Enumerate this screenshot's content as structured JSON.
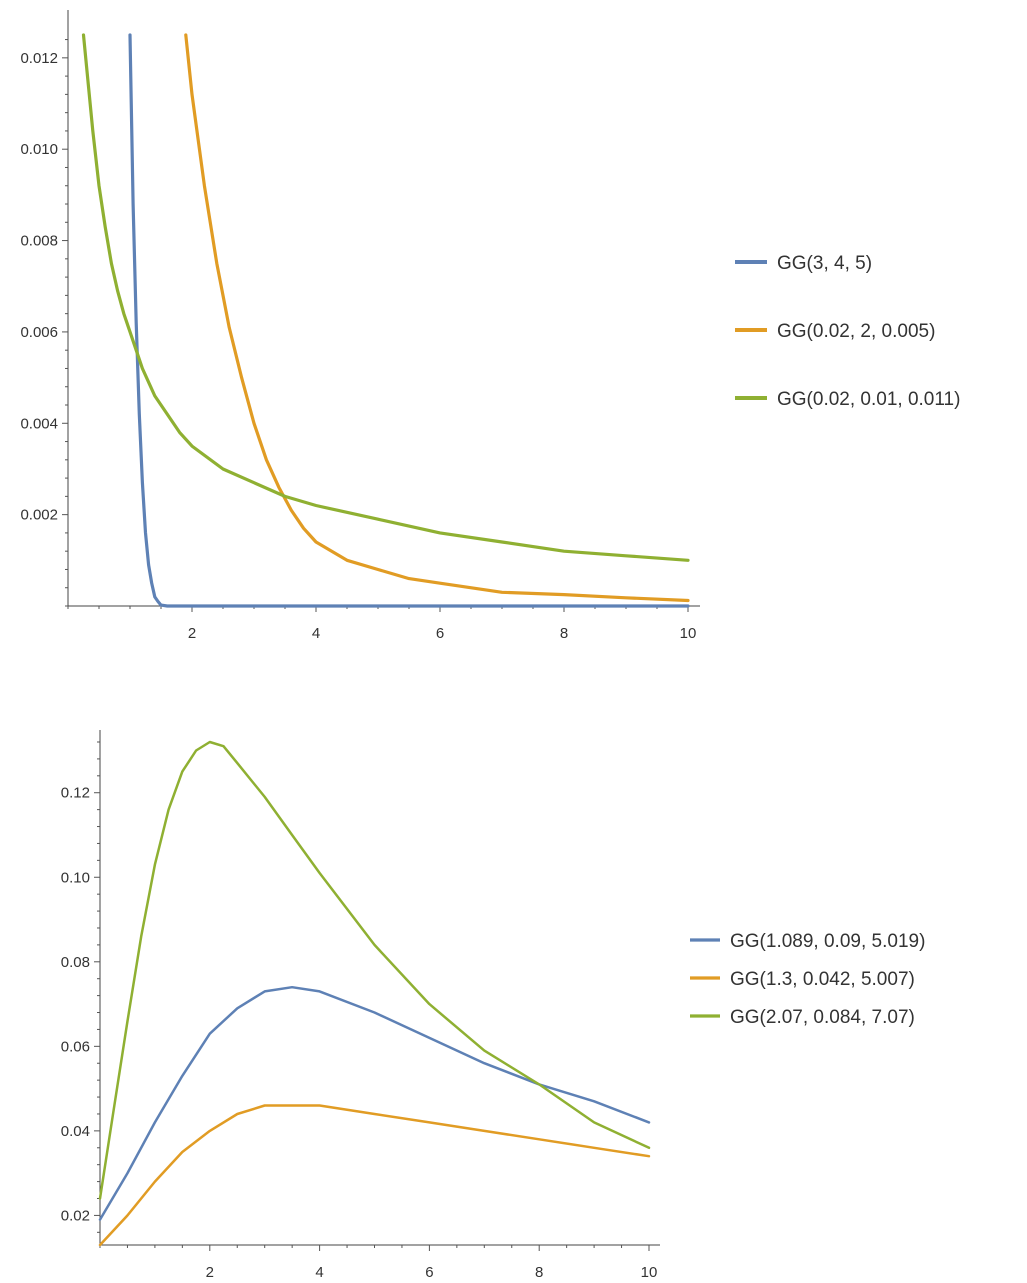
{
  "chart_data": [
    {
      "type": "line",
      "title": "",
      "xlabel": "",
      "ylabel": "",
      "xlim": [
        0,
        10
      ],
      "ylim": [
        0,
        0.0125
      ],
      "grid": false,
      "legend_position": "right",
      "x_ticks": [
        2,
        4,
        6,
        8,
        10
      ],
      "x_tick_labels": [
        "2",
        "4",
        "6",
        "8",
        "10"
      ],
      "y_ticks": [
        0.002,
        0.004,
        0.006,
        0.008,
        0.01,
        0.012
      ],
      "y_tick_labels": [
        "0.002",
        "0.004",
        "0.006",
        "0.008",
        "0.010",
        "0.012"
      ],
      "series": [
        {
          "name": "GG(3, 4, 5)",
          "color": "#5e81b5",
          "x": [
            1.0,
            1.05,
            1.1,
            1.15,
            1.2,
            1.25,
            1.3,
            1.35,
            1.4,
            1.45,
            1.5,
            1.6,
            1.8,
            2.5,
            4,
            6,
            8,
            10
          ],
          "y": [
            0.0125,
            0.0088,
            0.0062,
            0.0042,
            0.0027,
            0.0016,
            0.0009,
            0.0005,
            0.0002,
            0.0001,
            2e-05,
            0.0,
            0.0,
            0.0,
            0.0,
            0.0,
            0.0,
            0.0
          ]
        },
        {
          "name": "GG(0.02, 2, 0.005)",
          "color": "#e19c24",
          "x": [
            1.9,
            2.0,
            2.2,
            2.4,
            2.6,
            2.8,
            3.0,
            3.2,
            3.4,
            3.6,
            3.8,
            4.0,
            4.5,
            5.0,
            5.5,
            6.0,
            7.0,
            8.0,
            9.0,
            10.0
          ],
          "y": [
            0.0125,
            0.0112,
            0.0092,
            0.0075,
            0.0061,
            0.005,
            0.004,
            0.0032,
            0.0026,
            0.0021,
            0.0017,
            0.0014,
            0.001,
            0.0008,
            0.0006,
            0.0005,
            0.0003,
            0.00025,
            0.00018,
            0.00012
          ]
        },
        {
          "name": "GG(0.02, 0.01, 0.011)",
          "color": "#8fb032",
          "x": [
            0.25,
            0.3,
            0.4,
            0.5,
            0.6,
            0.7,
            0.8,
            0.9,
            1.0,
            1.1,
            1.2,
            1.4,
            1.6,
            1.8,
            2.0,
            2.5,
            3.0,
            3.5,
            4.0,
            5.0,
            6.0,
            7.0,
            8.0,
            9.0,
            10.0
          ],
          "y": [
            0.0125,
            0.0118,
            0.0104,
            0.0092,
            0.0083,
            0.0075,
            0.0069,
            0.0064,
            0.006,
            0.0056,
            0.0052,
            0.0046,
            0.0042,
            0.0038,
            0.0035,
            0.003,
            0.0027,
            0.0024,
            0.0022,
            0.0019,
            0.0016,
            0.0014,
            0.0012,
            0.0011,
            0.001
          ]
        }
      ]
    },
    {
      "type": "line",
      "title": "",
      "xlabel": "",
      "ylabel": "",
      "xlim": [
        0,
        10
      ],
      "ylim": [
        0.013,
        0.135
      ],
      "grid": false,
      "legend_position": "right",
      "x_ticks": [
        2,
        4,
        6,
        8,
        10
      ],
      "x_tick_labels": [
        "2",
        "4",
        "6",
        "8",
        "10"
      ],
      "y_ticks": [
        0.02,
        0.04,
        0.06,
        0.08,
        0.1,
        0.12
      ],
      "y_tick_labels": [
        "0.02",
        "0.04",
        "0.06",
        "0.08",
        "0.10",
        "0.12"
      ],
      "series": [
        {
          "name": "GG(1.089, 0.09, 5.019)",
          "color": "#5e81b5",
          "x": [
            0.0,
            0.5,
            1.0,
            1.5,
            2.0,
            2.5,
            3.0,
            3.5,
            4.0,
            5.0,
            6.0,
            7.0,
            8.0,
            9.0,
            10.0
          ],
          "y": [
            0.019,
            0.03,
            0.042,
            0.053,
            0.063,
            0.069,
            0.073,
            0.074,
            0.073,
            0.068,
            0.062,
            0.056,
            0.051,
            0.047,
            0.042
          ]
        },
        {
          "name": "GG(1.3, 0.042, 5.007)",
          "color": "#e19c24",
          "x": [
            0.0,
            0.5,
            1.0,
            1.5,
            2.0,
            2.5,
            3.0,
            3.5,
            4.0,
            5.0,
            6.0,
            7.0,
            8.0,
            9.0,
            10.0
          ],
          "y": [
            0.013,
            0.02,
            0.028,
            0.035,
            0.04,
            0.044,
            0.046,
            0.046,
            0.046,
            0.044,
            0.042,
            0.04,
            0.038,
            0.036,
            0.034
          ]
        },
        {
          "name": "GG(2.07, 0.084, 7.07)",
          "color": "#8fb032",
          "x": [
            0.0,
            0.25,
            0.5,
            0.75,
            1.0,
            1.25,
            1.5,
            1.75,
            2.0,
            2.25,
            2.5,
            3.0,
            3.5,
            4.0,
            5.0,
            6.0,
            7.0,
            8.0,
            9.0,
            10.0
          ],
          "y": [
            0.024,
            0.045,
            0.066,
            0.086,
            0.103,
            0.116,
            0.125,
            0.13,
            0.132,
            0.131,
            0.127,
            0.119,
            0.11,
            0.101,
            0.084,
            0.07,
            0.059,
            0.051,
            0.042,
            0.036
          ]
        }
      ]
    }
  ]
}
